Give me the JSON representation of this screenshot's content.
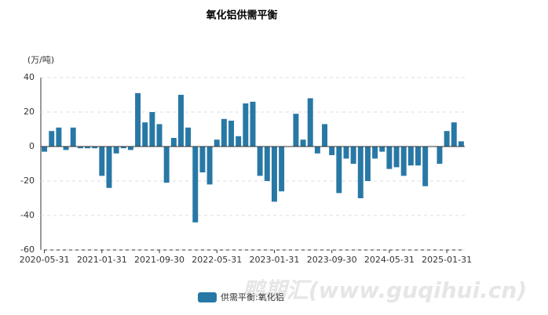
{
  "chart_data": {
    "type": "bar",
    "title": "氧化铝供需平衡",
    "y_label": "(万/吨)",
    "watermark": "鸭期汇(www.guqihui.cn)",
    "categories": [
      "2020-05-31",
      null,
      null,
      null,
      null,
      null,
      null,
      null,
      "2021-01-31",
      null,
      null,
      null,
      null,
      null,
      null,
      null,
      "2021-09-30",
      null,
      null,
      null,
      null,
      null,
      null,
      null,
      "2022-05-31",
      null,
      null,
      null,
      null,
      null,
      null,
      null,
      "2023-01-31",
      null,
      null,
      null,
      null,
      null,
      null,
      null,
      "2023-09-30",
      null,
      null,
      null,
      null,
      null,
      null,
      null,
      "2024-05-31",
      null,
      null,
      null,
      null,
      null,
      null,
      null,
      "2025-01-31",
      null,
      null
    ],
    "series": [
      {
        "name": "供需平衡:氧化铝",
        "color": "#2878a5",
        "values": [
          -3,
          9,
          11,
          -2,
          11,
          -1,
          -1,
          -1,
          -17,
          -24,
          -4,
          -1,
          -2,
          31,
          14,
          20,
          13,
          -21,
          5,
          30,
          11,
          -44,
          -15,
          -22,
          4,
          16,
          15,
          6,
          25,
          26,
          -17,
          -20,
          -32,
          -26,
          0,
          19,
          4,
          28,
          -4,
          13,
          -5,
          -27,
          -7,
          -10,
          -30,
          -20,
          -7,
          -3,
          -13,
          -12,
          -17,
          -11,
          -11,
          -23,
          0,
          -10,
          9,
          14,
          3
        ]
      }
    ],
    "ylim": [
      -60,
      40
    ],
    "yticks": [
      -60,
      -40,
      -20,
      0,
      20,
      40
    ],
    "grid": true,
    "legend": "bottom"
  }
}
